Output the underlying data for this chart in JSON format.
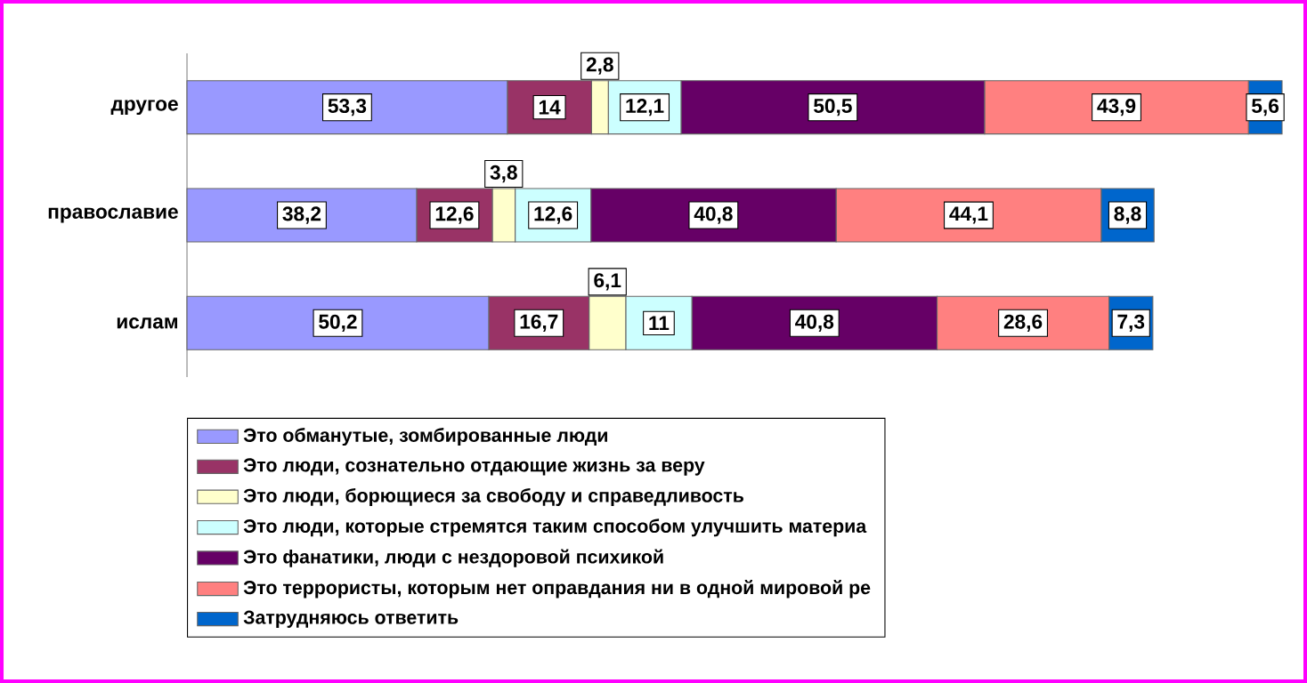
{
  "chart_data": {
    "type": "bar",
    "orientation": "horizontal",
    "stacked": true,
    "legend": "bottom",
    "categories": [
      "другое",
      "православие",
      "ислам"
    ],
    "series": [
      {
        "name": "Это обманутые, зомбированные люди",
        "color": "#9999ff",
        "values": [
          53.3,
          38.2,
          50.2
        ],
        "value_labels": [
          "53,3",
          "38,2",
          "50,2"
        ]
      },
      {
        "name": "Это люди, сознательно отдающие жизнь за веру",
        "color": "#993366",
        "values": [
          14,
          12.6,
          16.7
        ],
        "value_labels": [
          "14",
          "12,6",
          "16,7"
        ]
      },
      {
        "name": "Это люди, борющиеся за свободу и справедливость",
        "color": "#ffffcc",
        "values": [
          2.8,
          3.8,
          6.1
        ],
        "value_labels": [
          "2,8",
          "3,8",
          "6,1"
        ]
      },
      {
        "name": "Это люди, которые стремятся таким способом улучшить материа",
        "color": "#ccffff",
        "values": [
          12.1,
          12.6,
          11
        ],
        "value_labels": [
          "12,1",
          "12,6",
          "11"
        ]
      },
      {
        "name": "Это фанатики, люди с нездоровой психикой",
        "color": "#660066",
        "values": [
          50.5,
          40.8,
          40.8
        ],
        "value_labels": [
          "50,5",
          "40,8",
          "40,8"
        ]
      },
      {
        "name": "Это террористы, которым нет оправдания ни в одной мировой ре",
        "color": "#ff8080",
        "values": [
          43.9,
          44.1,
          28.6
        ],
        "value_labels": [
          "43,9",
          "44,1",
          "28,6"
        ]
      },
      {
        "name": "Затрудняюсь ответить",
        "color": "#0066cc",
        "values": [
          5.6,
          8.8,
          7.3
        ],
        "value_labels": [
          "5,6",
          "8,8",
          "7,3"
        ]
      }
    ]
  }
}
